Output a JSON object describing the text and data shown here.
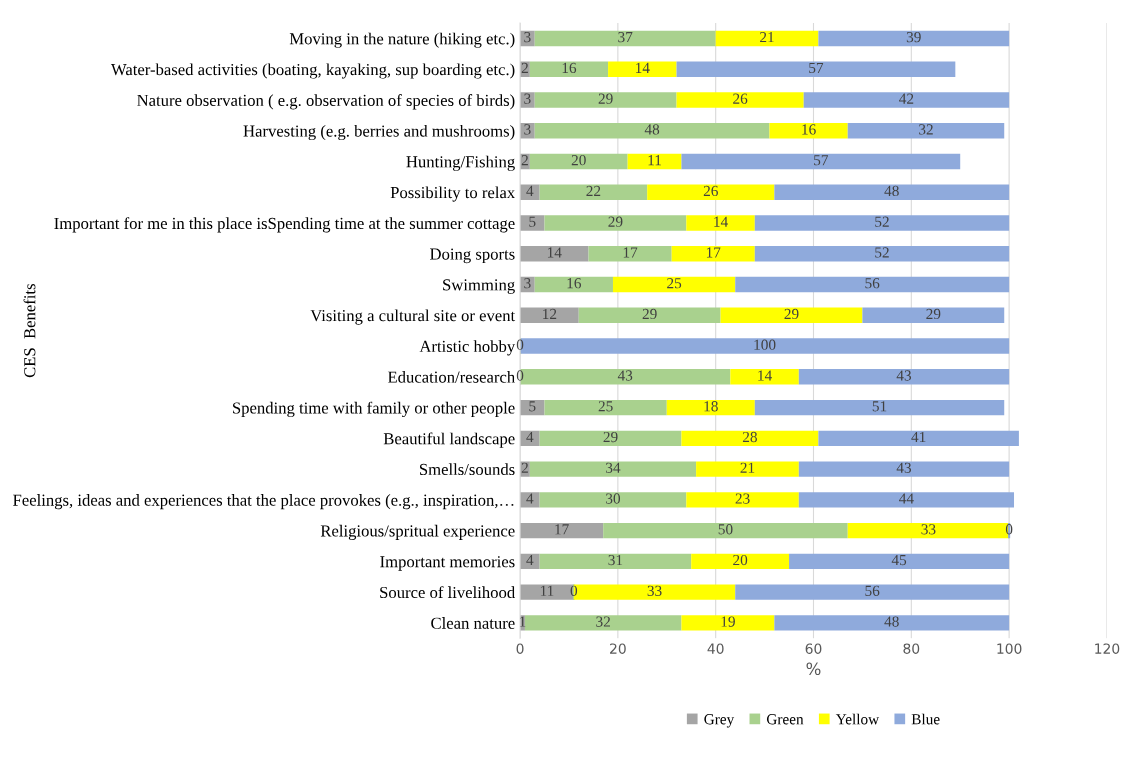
{
  "chart_data": {
    "type": "bar",
    "orientation": "horizontal",
    "stacked": true,
    "ylabel": "CES  Benefits",
    "xlabel": "%",
    "categories": [
      "Moving in the nature (hiking etc.)",
      "Water-based activities (boating, kayaking, sup boarding etc.)",
      "Nature observation ( e.g. observation of species of birds)",
      "Harvesting (e.g. berries and mushrooms)",
      "Hunting/Fishing",
      "Possibility to relax",
      "Important for me in this place isSpending time at the summer cottage",
      "Doing sports",
      "Swimming",
      "Visiting a cultural site or event",
      "Artistic hobby",
      "Education/research",
      "Spending time with family or other people",
      "Beautiful landscape",
      "Smells/sounds",
      "Feelings, ideas and experiences that the place provokes (e.g., inspiration,…",
      "Religious/spritual experience",
      "Important memories",
      "Source of livelihood",
      "Clean nature"
    ],
    "series": [
      {
        "name": "Grey",
        "color": "#a5a5a5",
        "values": [
          3,
          2,
          3,
          3,
          2,
          4,
          5,
          14,
          3,
          12,
          0,
          0,
          5,
          4,
          2,
          4,
          17,
          4,
          11,
          1
        ],
        "value_labels": [
          "3",
          "2",
          "3",
          "3",
          "2",
          "4",
          "5",
          "14",
          "3",
          "12",
          "0",
          "0",
          "5",
          "4",
          "2",
          "4",
          "17",
          "4",
          "11",
          "1"
        ]
      },
      {
        "name": "Green",
        "color": "#a9d18e",
        "values": [
          37,
          16,
          29,
          48,
          20,
          22,
          29,
          17,
          16,
          29,
          0,
          43,
          25,
          29,
          34,
          30,
          50,
          31,
          0,
          32
        ],
        "value_labels": [
          "37",
          "16",
          "29",
          "48",
          "20",
          "22",
          "29",
          "17",
          "16",
          "29",
          null,
          "43",
          "25",
          "29",
          "34",
          "30",
          "50",
          "31",
          "0",
          "32"
        ]
      },
      {
        "name": "Yellow",
        "color": "#ffff00",
        "values": [
          21,
          14,
          26,
          16,
          11,
          26,
          14,
          17,
          25,
          29,
          0,
          14,
          18,
          28,
          21,
          23,
          33,
          20,
          33,
          19
        ],
        "value_labels": [
          "21",
          "14",
          "26",
          "16",
          "11",
          "26",
          "14",
          "17",
          "25",
          "29",
          null,
          "14",
          "18",
          "28",
          "21",
          "23",
          "33",
          "20",
          "33",
          "19"
        ]
      },
      {
        "name": "Blue",
        "color": "#8faadc",
        "values": [
          39,
          57,
          42,
          32,
          57,
          48,
          52,
          52,
          56,
          29,
          100,
          43,
          51,
          41,
          43,
          44,
          0,
          45,
          56,
          48
        ],
        "value_labels": [
          "39",
          "57",
          "42",
          "32",
          "57",
          "48",
          "52",
          "52",
          "56",
          "29",
          "100",
          "43",
          "51",
          "41",
          "43",
          "44",
          "0",
          "45",
          "56",
          "48"
        ]
      }
    ],
    "xlim": [
      0,
      120
    ],
    "xticks": [
      0,
      20,
      40,
      60,
      80,
      100,
      120
    ],
    "grid": "x",
    "legend": "bottom"
  }
}
